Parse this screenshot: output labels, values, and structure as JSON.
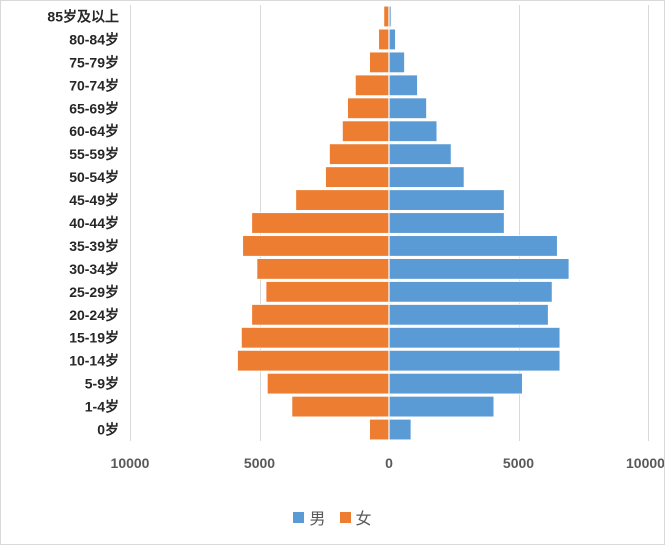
{
  "chart_data": {
    "type": "bar",
    "orientation": "horizontal",
    "subtype": "population-pyramid",
    "categories": [
      "85岁及以上",
      "80-84岁",
      "75-79岁",
      "70-74岁",
      "65-69岁",
      "60-64岁",
      "55-59岁",
      "50-54岁",
      "45-49岁",
      "40-44岁",
      "35-39岁",
      "30-34岁",
      "25-29岁",
      "20-24岁",
      "15-19岁",
      "10-14岁",
      "5-9岁",
      "1-4岁",
      "0岁"
    ],
    "series": [
      {
        "name": "男",
        "color": "#5b9bd5",
        "values": [
          80,
          250,
          600,
          1100,
          1450,
          1850,
          2400,
          2900,
          4450,
          4450,
          6500,
          6950,
          6300,
          6150,
          6600,
          6600,
          5150,
          4050,
          850
        ]
      },
      {
        "name": "女",
        "color": "#ed7d31",
        "values": [
          -200,
          -400,
          -750,
          -1300,
          -1600,
          -1800,
          -2300,
          -2450,
          -3600,
          -5300,
          -5650,
          -5100,
          -4750,
          -5300,
          -5700,
          -5850,
          -4700,
          -3750,
          -750
        ]
      }
    ],
    "x_ticks": [
      -10000,
      -5000,
      0,
      5000,
      10000
    ],
    "x_tick_labels": [
      "10000",
      "5000",
      "0",
      "5000",
      "10000"
    ],
    "xlim": [
      -10000,
      10000
    ],
    "grid": true,
    "legend_position": "bottom"
  }
}
